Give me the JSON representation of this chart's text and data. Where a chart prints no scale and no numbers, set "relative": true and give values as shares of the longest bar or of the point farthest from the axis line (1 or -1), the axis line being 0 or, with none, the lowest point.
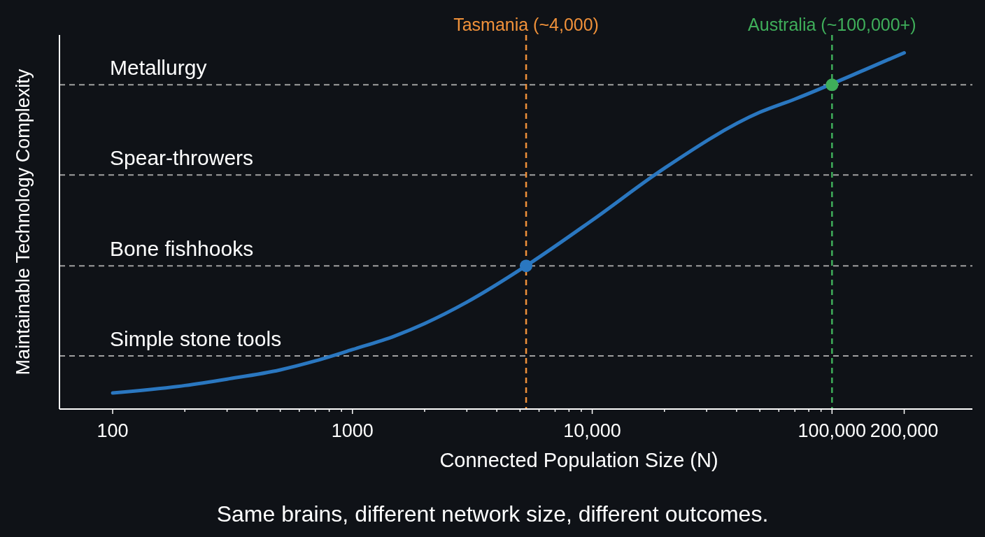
{
  "chart_data": {
    "type": "line",
    "xlabel": "Connected Population Size (N)",
    "ylabel": "Maintainable Technology Complexity",
    "relative": true,
    "log": "x",
    "xlim": [
      60,
      385000
    ],
    "xticks": [
      100,
      {
        "value": 200,
        "label": null
      },
      {
        "value": 300,
        "label": null
      },
      {
        "value": 400,
        "label": null
      },
      {
        "value": 500,
        "label": null
      },
      {
        "value": 600,
        "label": null
      },
      {
        "value": 700,
        "label": null
      },
      {
        "value": 800,
        "label": null
      },
      {
        "value": 900,
        "label": null
      },
      1000,
      {
        "value": 2000,
        "label": null
      },
      {
        "value": 3000,
        "label": null
      },
      {
        "value": 4000,
        "label": null
      },
      {
        "value": 5000,
        "label": null
      },
      {
        "value": 6000,
        "label": null
      },
      {
        "value": 7000,
        "label": null
      },
      {
        "value": 8000,
        "label": null
      },
      {
        "value": 9000,
        "label": null
      },
      {
        "value": 10000,
        "label": "10,000"
      },
      {
        "value": 20000,
        "label": null
      },
      {
        "value": 30000,
        "label": null
      },
      {
        "value": 40000,
        "label": null
      },
      {
        "value": 50000,
        "label": null
      },
      {
        "value": 60000,
        "label": null
      },
      {
        "value": 70000,
        "label": null
      },
      {
        "value": 80000,
        "label": null
      },
      {
        "value": 90000,
        "label": null
      },
      {
        "value": 100000,
        "label": "100,000"
      },
      {
        "value": 200000,
        "label": "200,000"
      }
    ],
    "grid": false,
    "marker": "none",
    "line_style": "solid",
    "series": [
      {
        "color": "#2a77c0",
        "x": [
          100,
          200,
          300,
          500,
          700,
          1000,
          1500,
          2000,
          3000,
          5300,
          10000,
          20000,
          50000,
          70000,
          140000,
          200000
        ],
        "values": [
          0.045,
          0.066,
          0.084,
          0.11,
          0.135,
          0.167,
          0.205,
          0.24,
          0.3,
          0.402,
          0.53,
          0.676,
          0.833,
          0.87,
          0.955,
          1.0
        ]
      },
      {
        "type": "scatter",
        "marker": "circle",
        "color": "#2a77c0",
        "x": [
          5300
        ],
        "values": [
          0.402
        ]
      },
      {
        "type": "scatter",
        "marker": "circle",
        "color": "#3fae5a",
        "x": [
          100000
        ],
        "values": [
          0.91
        ]
      }
    ],
    "ref_lines": [
      {
        "axis": "y",
        "value": 0.91,
        "label": "Metallurgy",
        "color": "#a0a0a0",
        "line_style": "dashed"
      },
      {
        "axis": "y",
        "value": 0.657,
        "label": "Spear-throwers",
        "color": "#a0a0a0",
        "line_style": "dashed"
      },
      {
        "axis": "y",
        "value": 0.402,
        "label": "Bone fishhooks",
        "color": "#a0a0a0",
        "line_style": "dashed"
      },
      {
        "axis": "y",
        "value": 0.149,
        "label": "Simple stone tools",
        "color": "#a0a0a0",
        "line_style": "dashed"
      },
      {
        "axis": "x",
        "value": 5300,
        "label": "Tasmania (~4,000)",
        "color": "#f0913a",
        "line_style": "dashed"
      },
      {
        "axis": "x",
        "value": 100000,
        "label": "Australia (~100,000+)",
        "color": "#3fae5a",
        "line_style": "dashed"
      }
    ],
    "annotations": [
      "Same brains, different network size, different outcomes."
    ]
  }
}
